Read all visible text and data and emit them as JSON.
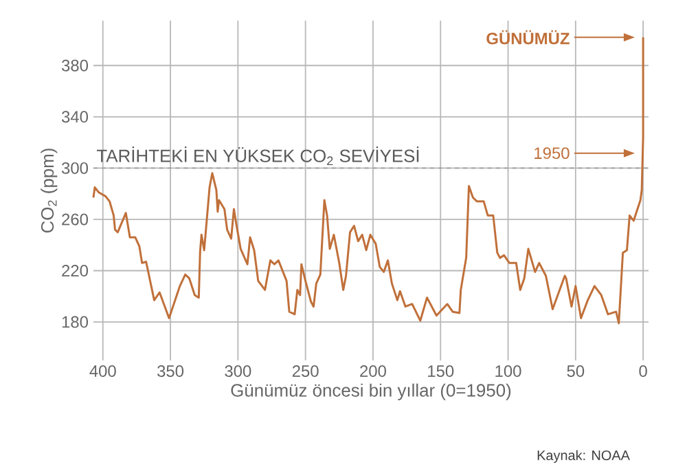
{
  "chart_data": {
    "type": "line",
    "xlabel": "Günümüz öncesi bin yıllar   (0=1950)",
    "ylabel": "CO$_{2}$ (ppm)",
    "xlim": [
      407,
      -4
    ],
    "ylim": [
      150,
      415
    ],
    "xticks": [
      400,
      350,
      300,
      250,
      200,
      150,
      100,
      50,
      0
    ],
    "yticks": [
      180,
      220,
      260,
      300,
      340,
      380
    ],
    "grid": true,
    "ref_lines": [
      {
        "axis": "y",
        "value": 300,
        "label": "TARİHTEKİ EN YÜKSEK CO$_{2}$ SEVİYESİ",
        "color": "#a0a0a0",
        "line_style": "dashed"
      }
    ],
    "annotations": [
      "GÜNÜMÜZ",
      "1950",
      "Kaynak: NOAA"
    ],
    "series": [
      {
        "color": "#c0703a",
        "x": [
          407,
          406,
          403,
          398,
          395,
          392,
          391,
          389,
          383,
          380,
          376,
          373,
          371,
          368,
          362,
          358,
          351,
          343,
          339,
          336,
          332,
          329,
          328,
          327,
          325,
          321,
          319,
          316,
          315,
          314,
          310,
          308,
          305,
          303,
          301,
          298,
          293,
          291,
          288,
          285,
          280,
          276,
          273,
          270,
          264,
          262,
          258,
          256,
          254,
          253,
          250,
          246,
          244,
          242,
          239,
          236,
          234,
          232,
          229,
          225,
          222,
          220,
          217,
          214,
          211,
          208,
          205,
          202,
          198,
          195,
          192,
          189,
          186,
          182,
          180,
          176,
          171,
          165,
          160,
          153,
          145,
          141,
          136,
          135,
          131,
          129,
          126,
          123,
          118,
          115,
          111,
          108,
          106,
          103,
          99,
          94,
          91,
          88,
          85,
          80,
          77,
          72,
          67,
          58,
          57,
          53,
          50,
          46,
          41,
          36,
          31,
          26,
          20,
          18,
          15,
          12,
          10,
          7,
          2,
          1,
          0,
          0
        ],
        "values": [
          277,
          285,
          281,
          278,
          274,
          263,
          252,
          250,
          265,
          246,
          246,
          239,
          226,
          227,
          197,
          203,
          183,
          208,
          217,
          214,
          201,
          199,
          235,
          248,
          236,
          285,
          296,
          283,
          266,
          275,
          268,
          252,
          245,
          268,
          255,
          237,
          225,
          246,
          236,
          212,
          205,
          228,
          225,
          228,
          212,
          188,
          186,
          205,
          201,
          225,
          212,
          196,
          192,
          210,
          217,
          275,
          263,
          237,
          248,
          226,
          205,
          216,
          250,
          255,
          243,
          248,
          236,
          248,
          241,
          223,
          219,
          228,
          210,
          197,
          204,
          192,
          194,
          181,
          199,
          185,
          194,
          188,
          187,
          205,
          230,
          286,
          277,
          274,
          274,
          263,
          263,
          234,
          230,
          232,
          226,
          226,
          205,
          214,
          237,
          219,
          226,
          216,
          190,
          216,
          214,
          192,
          208,
          183,
          197,
          208,
          201,
          186,
          188,
          179,
          234,
          236,
          263,
          259,
          275,
          283,
          324,
          402
        ]
      }
    ]
  }
}
